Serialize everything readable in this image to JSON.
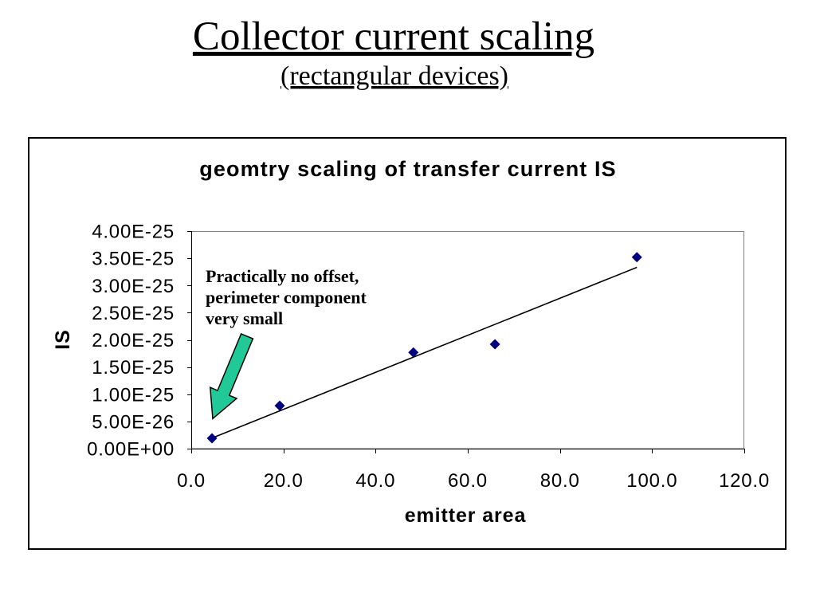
{
  "slide": {
    "title": "Collector current scaling",
    "subtitle": "(rectangular devices)"
  },
  "colors": {
    "marker": "#000080",
    "arrow": "#20C997",
    "plot_border": "#808080"
  },
  "chart_data": {
    "type": "scatter",
    "title": "geomtry scaling of transfer current IS",
    "xlabel": "emitter area",
    "ylabel": "IS",
    "xlim": [
      0,
      120
    ],
    "ylim": [
      0,
      4e-25
    ],
    "xticks": [
      0,
      20,
      40,
      60,
      80,
      100,
      120
    ],
    "xtick_labels": [
      "0.0",
      "20.0",
      "40.0",
      "60.0",
      "80.0",
      "100.0",
      "120.0"
    ],
    "yticks": [
      0,
      5e-26,
      1e-25,
      1.5e-25,
      2e-25,
      2.5e-25,
      3e-25,
      3.5e-25,
      4e-25
    ],
    "ytick_labels": [
      "0.00E+00",
      "5.00E-26",
      "1.00E-25",
      "1.50E-25",
      "2.00E-25",
      "2.50E-25",
      "3.00E-25",
      "3.50E-25",
      "4.00E-25"
    ],
    "series": [
      {
        "x": [
          4.5,
          19.2,
          48.2,
          65.9,
          96.7
        ],
        "y": [
          1.9e-26,
          7.9e-26,
          1.77e-25,
          1.92e-25,
          3.52e-25
        ]
      }
    ],
    "linear_trendline": true,
    "grid": false,
    "annotations": [
      {
        "lines": [
          "Practically no offset,",
          "perimeter component",
          "very small"
        ]
      }
    ]
  }
}
